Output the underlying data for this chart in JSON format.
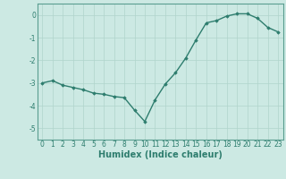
{
  "x": [
    0,
    1,
    2,
    3,
    4,
    5,
    6,
    7,
    8,
    9,
    10,
    11,
    12,
    13,
    14,
    15,
    16,
    17,
    18,
    19,
    20,
    21,
    22,
    23
  ],
  "y": [
    -3.0,
    -2.9,
    -3.1,
    -3.2,
    -3.3,
    -3.45,
    -3.5,
    -3.6,
    -3.65,
    -4.2,
    -4.7,
    -3.75,
    -3.05,
    -2.55,
    -1.9,
    -1.1,
    -0.35,
    -0.25,
    -0.05,
    0.05,
    0.05,
    -0.15,
    -0.55,
    -0.75
  ],
  "line_color": "#2e7d6e",
  "marker": "D",
  "marker_size": 1.8,
  "xlabel": "Humidex (Indice chaleur)",
  "xlim": [
    -0.5,
    23.5
  ],
  "ylim": [
    -5.5,
    0.5
  ],
  "yticks": [
    0,
    -1,
    -2,
    -3,
    -4,
    -5
  ],
  "xtick_labels": [
    "0",
    "1",
    "2",
    "3",
    "4",
    "5",
    "6",
    "7",
    "8",
    "9",
    "10",
    "11",
    "12",
    "13",
    "14",
    "15",
    "16",
    "17",
    "18",
    "19",
    "20",
    "21",
    "22",
    "23"
  ],
  "bg_color": "#cce9e3",
  "grid_color": "#b0d4cc",
  "tick_label_fontsize": 5.5,
  "xlabel_fontsize": 7.0,
  "line_width": 1.0,
  "spine_color": "#5a9e90"
}
